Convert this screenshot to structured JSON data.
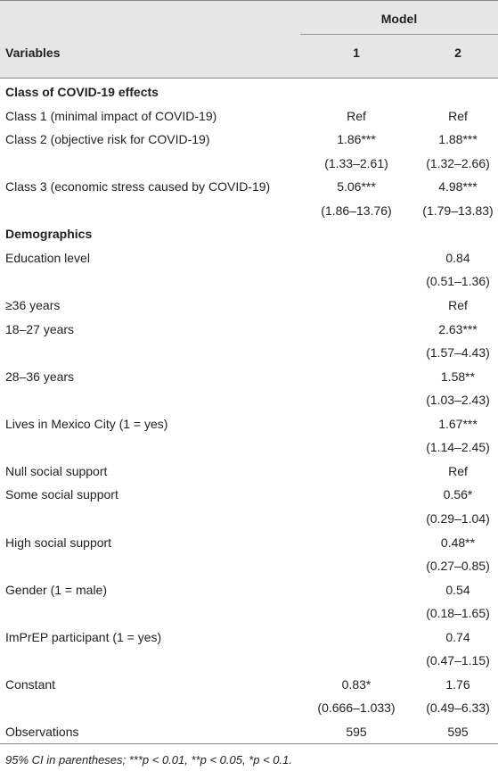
{
  "header": {
    "model_label": "Model",
    "variables_label": "Variables",
    "col1": "1",
    "col2": "2"
  },
  "rows": [
    {
      "label": "Class of COVID-19 effects",
      "m1": "",
      "m2": "",
      "section": true
    },
    {
      "label": "Class 1 (minimal impact of COVID-19)",
      "m1": "Ref",
      "m2": "Ref"
    },
    {
      "label": "Class 2 (objective risk for COVID-19)",
      "m1": "1.86***",
      "m2": "1.88***"
    },
    {
      "label": "",
      "m1": "(1.33–2.61)",
      "m2": "(1.32–2.66)"
    },
    {
      "label": "Class 3 (economic stress caused by COVID-19)",
      "m1": "5.06***",
      "m2": "4.98***"
    },
    {
      "label": "",
      "m1": "(1.86–13.76)",
      "m2": "(1.79–13.83)"
    },
    {
      "label": "Demographics",
      "m1": "",
      "m2": "",
      "section": true
    },
    {
      "label": "Education level",
      "m1": "",
      "m2": "0.84"
    },
    {
      "label": "",
      "m1": "",
      "m2": "(0.51–1.36)"
    },
    {
      "label": "≥36 years",
      "m1": "",
      "m2": "Ref"
    },
    {
      "label": "18–27 years",
      "m1": "",
      "m2": "2.63***"
    },
    {
      "label": "",
      "m1": "",
      "m2": "(1.57–4.43)"
    },
    {
      "label": "28–36 years",
      "m1": "",
      "m2": "1.58**"
    },
    {
      "label": "",
      "m1": "",
      "m2": "(1.03–2.43)"
    },
    {
      "label": "Lives in Mexico City (1 = yes)",
      "m1": "",
      "m2": "1.67***"
    },
    {
      "label": "",
      "m1": "",
      "m2": "(1.14–2.45)"
    },
    {
      "label": "Null social support",
      "m1": "",
      "m2": "Ref"
    },
    {
      "label": "Some social support",
      "m1": "",
      "m2": "0.56*"
    },
    {
      "label": "",
      "m1": "",
      "m2": "(0.29–1.04)"
    },
    {
      "label": "High social support",
      "m1": "",
      "m2": "0.48**"
    },
    {
      "label": "",
      "m1": "",
      "m2": "(0.27–0.85)"
    },
    {
      "label": "Gender (1 = male)",
      "m1": "",
      "m2": "0.54"
    },
    {
      "label": "",
      "m1": "",
      "m2": "(0.18–1.65)"
    },
    {
      "label": "ImPrEP participant (1 = yes)",
      "m1": "",
      "m2": "0.74"
    },
    {
      "label": "",
      "m1": "",
      "m2": "(0.47–1.15)"
    },
    {
      "label": "Constant",
      "m1": "0.83*",
      "m2": "1.76"
    },
    {
      "label": "",
      "m1": "(0.666–1.033)",
      "m2": "(0.49–6.33)"
    },
    {
      "label": "Observations",
      "m1": "595",
      "m2": "595"
    }
  ],
  "footnote": "95% CI in parentheses; ***p < 0.01, **p < 0.05, *p < 0.1."
}
